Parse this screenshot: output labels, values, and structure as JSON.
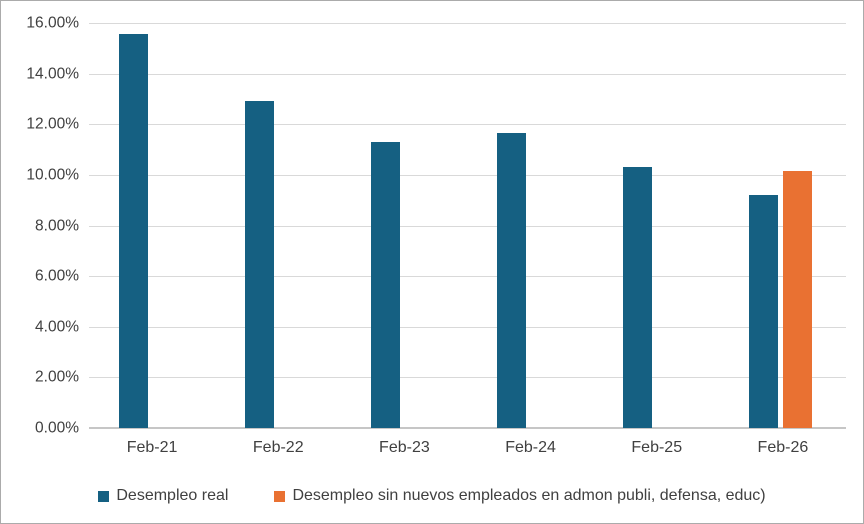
{
  "chart_data": {
    "type": "bar",
    "title": "",
    "categories": [
      "Feb-21",
      "Feb-22",
      "Feb-23",
      "Feb-24",
      "Feb-25",
      "Feb-26"
    ],
    "series": [
      {
        "key": "desempleo-real",
        "name": "Desempleo real",
        "color": "#156082",
        "values": [
          15.55,
          12.9,
          11.3,
          11.65,
          10.3,
          9.2
        ]
      },
      {
        "key": "desempleo-sin-nuevos-empleados",
        "name": "Desempleo sin nuevos empleados en admon publi, defensa, educ)",
        "color": "#E97132",
        "values": [
          null,
          null,
          null,
          null,
          null,
          10.15
        ]
      }
    ],
    "ylim": [
      0,
      16
    ],
    "ytick_step": 2,
    "ytick_labels": [
      "0.00%",
      "2.00%",
      "4.00%",
      "6.00%",
      "8.00%",
      "10.00%",
      "12.00%",
      "14.00%",
      "16.00%"
    ],
    "grid": true,
    "legend_position": "bottom",
    "colors": {
      "gridline": "#D9D9D9",
      "axis_line": "#C6C6C6",
      "text": "#404040",
      "chart_border": "#ABABAB",
      "background": "#FFFFFF"
    }
  }
}
